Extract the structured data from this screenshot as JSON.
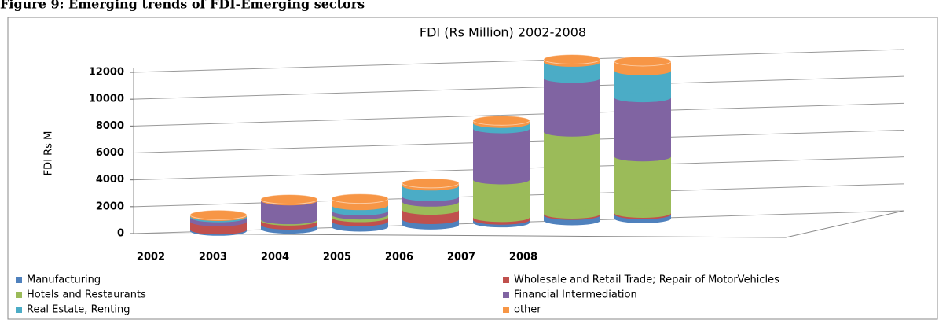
{
  "figure_title": "Figure 9: Emerging trends of FDI-Emerging sectors",
  "chart_data": {
    "type": "bar",
    "stacked": true,
    "title": "FDI (Rs Million) 2002-2008",
    "y_label": "FDI Rs M",
    "categories": [
      "2002",
      "2003",
      "2004",
      "2005",
      "2006",
      "2007",
      "2008"
    ],
    "series": [
      {
        "name": "Manufacturing",
        "color": "#4f81bd",
        "values": [
          100,
          300,
          400,
          400,
          200,
          400,
          300
        ]
      },
      {
        "name": "Wholesale and Retail Trade; Repair of MotorVehicles",
        "color": "#c0504d",
        "values": [
          600,
          300,
          300,
          700,
          200,
          100,
          100
        ]
      },
      {
        "name": "Hotels and Restaurants",
        "color": "#9bbb59",
        "values": [
          0,
          100,
          200,
          600,
          2800,
          6100,
          4200
        ]
      },
      {
        "name": "Financial Intermediation",
        "color": "#8064a2",
        "values": [
          300,
          1400,
          300,
          400,
          3800,
          4000,
          4400
        ]
      },
      {
        "name": "Real Estate, Renting",
        "color": "#4bacc6",
        "values": [
          100,
          0,
          400,
          800,
          400,
          1200,
          2000
        ]
      },
      {
        "name": "other",
        "color": "#f79646",
        "values": [
          100,
          100,
          500,
          200,
          200,
          200,
          700
        ]
      }
    ],
    "ylim": [
      0,
      12000
    ],
    "yticks": [
      0,
      2000,
      4000,
      6000,
      8000,
      10000,
      12000
    ],
    "grid": true
  }
}
